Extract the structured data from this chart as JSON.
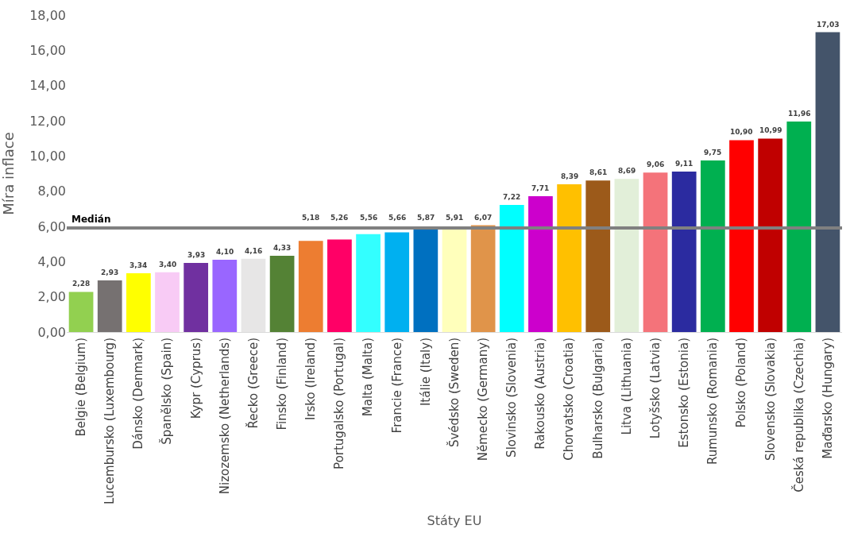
{
  "chart_data": {
    "type": "bar",
    "xlabel": "Státy EU",
    "ylabel": "Míra inflace",
    "categories": [
      "Belgie (Belgium)",
      "Lucembursko (Luxembourg)",
      "Dánsko (Denmark)",
      "Španělsko (Spain)",
      "Kypr (Cyprus)",
      "Nizozemsko (Netherlands)",
      "Řecko (Greece)",
      "Finsko (Finland)",
      "Irsko (Ireland)",
      "Portugalsko (Portugal)",
      "Malta (Malta)",
      "Francie (France)",
      "Itálie (Italy)",
      "Švédsko (Sweden)",
      "Německo (Germany)",
      "Slovinsko (Slovenia)",
      "Rakousko (Austria)",
      "Chorvatsko (Croatia)",
      "Bulharsko (Bulgaria)",
      "Litva (Lithuania)",
      "Lotyšsko (Latvia)",
      "Estonsko (Estonia)",
      "Rumunsko (Romania)",
      "Polsko (Poland)",
      "Slovensko (Slovakia)",
      "Česká republika (Czechia)",
      "Maďarsko (Hungary)"
    ],
    "values": [
      2.28,
      2.93,
      3.34,
      3.4,
      3.93,
      4.1,
      4.16,
      4.33,
      5.18,
      5.26,
      5.56,
      5.66,
      5.87,
      5.91,
      6.07,
      7.22,
      7.71,
      8.39,
      8.61,
      8.69,
      9.06,
      9.11,
      9.75,
      10.9,
      10.99,
      11.96,
      17.03
    ],
    "value_labels": [
      "2,28",
      "2,93",
      "3,34",
      "3,40",
      "3,93",
      "4,10",
      "4,16",
      "4,33",
      "5,18",
      "5,26",
      "5,56",
      "5,66",
      "5,87",
      "5,91",
      "6,07",
      "7,22",
      "7,71",
      "8,39",
      "8,61",
      "8,69",
      "9,06",
      "9,11",
      "9,75",
      "10,90",
      "10,99",
      "11,96",
      "17,03"
    ],
    "colors": [
      "#92d050",
      "#767171",
      "#ffff00",
      "#f8cbf5",
      "#7030a0",
      "#9966ff",
      "#e7e6e6",
      "#548235",
      "#ed7d31",
      "#ff0066",
      "#33ffff",
      "#00b0f0",
      "#0070c0",
      "#ffffbb",
      "#e0944a",
      "#00ffff",
      "#cc00cc",
      "#ffc000",
      "#9c5a1a",
      "#e2efd9",
      "#f4737a",
      "#2b2ba0",
      "#00b050",
      "#ff0000",
      "#c00000",
      "#00b050",
      "#44546a"
    ],
    "ylim": [
      0,
      18
    ],
    "yticks": [
      {
        "value": 0,
        "label": "0,00"
      },
      {
        "value": 2,
        "label": "2,00"
      },
      {
        "value": 4,
        "label": "4,00"
      },
      {
        "value": 6,
        "label": "6,00"
      },
      {
        "value": 8,
        "label": "8,00"
      },
      {
        "value": 10,
        "label": "10,00"
      },
      {
        "value": 12,
        "label": "12,00"
      },
      {
        "value": 14,
        "label": "14,00"
      },
      {
        "value": 16,
        "label": "16,00"
      },
      {
        "value": 18,
        "label": "18,00"
      }
    ],
    "ref_lines": [
      {
        "axis": "y",
        "value": 5.91,
        "label": "Medián",
        "color": "#808080"
      }
    ],
    "grid": false,
    "legend": false
  }
}
